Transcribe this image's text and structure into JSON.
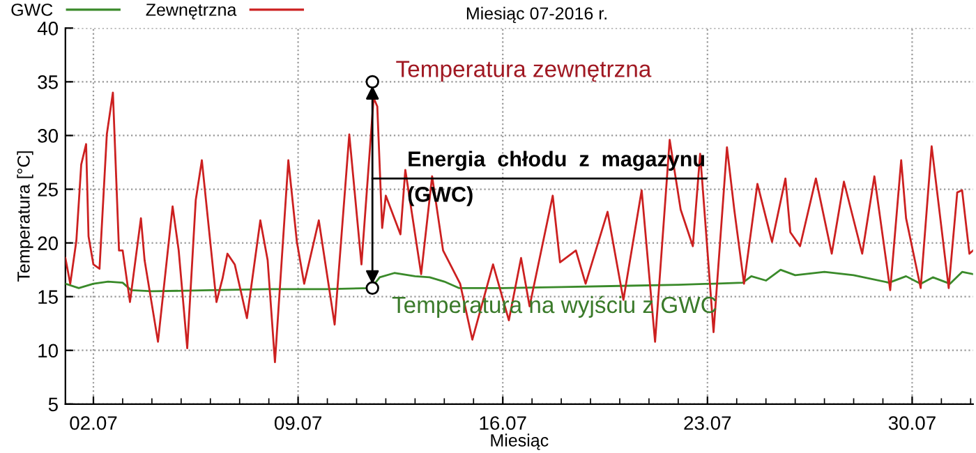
{
  "chart_data": {
    "type": "line",
    "title": "Miesiąc 07-2016 r.",
    "xlabel": "Miesiąc",
    "ylabel": "Temperatura [°C]",
    "xlim": [
      "2016-07-01T01:00",
      "2016-08-01T02:00"
    ],
    "ylim": [
      5,
      40
    ],
    "xticks": [
      {
        "value": "2016-07-02",
        "label": "02.07"
      },
      {
        "value": "2016-07-03",
        "label": null
      },
      {
        "value": "2016-07-04",
        "label": null
      },
      {
        "value": "2016-07-05",
        "label": null
      },
      {
        "value": "2016-07-06",
        "label": null
      },
      {
        "value": "2016-07-07",
        "label": null
      },
      {
        "value": "2016-07-08",
        "label": null
      },
      {
        "value": "2016-07-09",
        "label": "09.07"
      },
      {
        "value": "2016-07-10",
        "label": null
      },
      {
        "value": "2016-07-11",
        "label": null
      },
      {
        "value": "2016-07-12",
        "label": null
      },
      {
        "value": "2016-07-13",
        "label": null
      },
      {
        "value": "2016-07-14",
        "label": null
      },
      {
        "value": "2016-07-15",
        "label": null
      },
      {
        "value": "2016-07-16",
        "label": "16.07"
      },
      {
        "value": "2016-07-17",
        "label": null
      },
      {
        "value": "2016-07-18",
        "label": null
      },
      {
        "value": "2016-07-19",
        "label": null
      },
      {
        "value": "2016-07-20",
        "label": null
      },
      {
        "value": "2016-07-21",
        "label": null
      },
      {
        "value": "2016-07-22",
        "label": null
      },
      {
        "value": "2016-07-23",
        "label": "23.07"
      },
      {
        "value": "2016-07-24",
        "label": null
      },
      {
        "value": "2016-07-25",
        "label": null
      },
      {
        "value": "2016-07-26",
        "label": null
      },
      {
        "value": "2016-07-27",
        "label": null
      },
      {
        "value": "2016-07-28",
        "label": null
      },
      {
        "value": "2016-07-29",
        "label": null
      },
      {
        "value": "2016-07-30",
        "label": "30.07"
      },
      {
        "value": "2016-07-31",
        "label": null
      },
      {
        "value": "2016-08-01",
        "label": null
      }
    ],
    "yticks": [
      5,
      10,
      15,
      20,
      25,
      30,
      35,
      40
    ],
    "grid": true,
    "legend": "top left",
    "marker": "none",
    "line_style": "solid",
    "series": [
      {
        "name": "GWC",
        "color": "#3a8a2a",
        "x": [
          "2016-07-01T01:00",
          "2016-07-01T12:00",
          "2016-07-02T00:00",
          "2016-07-02T12:00",
          "2016-07-03T00:00",
          "2016-07-03T07:00",
          "2016-07-04T00:00",
          "2016-07-06T00:00",
          "2016-07-08T00:00",
          "2016-07-10T00:00",
          "2016-07-11T12:00",
          "2016-07-11T19:00",
          "2016-07-12T07:00",
          "2016-07-13T00:00",
          "2016-07-13T12:00",
          "2016-07-14T00:00",
          "2016-07-14T12:00",
          "2016-07-16T00:00",
          "2016-07-18T00:00",
          "2016-07-20T00:00",
          "2016-07-22T00:00",
          "2016-07-24T05:00",
          "2016-07-24T12:00",
          "2016-07-25T00:00",
          "2016-07-25T12:00",
          "2016-07-26T00:00",
          "2016-07-27T00:00",
          "2016-07-28T00:00",
          "2016-07-29T05:00",
          "2016-07-29T19:00",
          "2016-07-30T07:00",
          "2016-07-30T17:00",
          "2016-07-31T07:00",
          "2016-07-31T17:00",
          "2016-08-01T02:00"
        ],
        "values": [
          16.2,
          15.8,
          16.2,
          16.4,
          16.3,
          15.6,
          15.5,
          15.6,
          15.7,
          15.7,
          15.8,
          16.8,
          17.2,
          16.9,
          16.8,
          16.4,
          15.8,
          15.8,
          15.9,
          16.0,
          16.1,
          16.3,
          16.9,
          16.5,
          17.5,
          17.0,
          17.3,
          17.0,
          16.3,
          16.9,
          16.2,
          16.8,
          16.2,
          17.3,
          17.1
        ]
      },
      {
        "name": "Zewnętrzna",
        "color": "#cc2020",
        "x": [
          "2016-07-01T01:00",
          "2016-07-01T05:00",
          "2016-07-01T10:00",
          "2016-07-01T14:00",
          "2016-07-01T18:00",
          "2016-07-01T20:00",
          "2016-07-02T00:00",
          "2016-07-02T05:00",
          "2016-07-02T11:00",
          "2016-07-02T16:00",
          "2016-07-02T21:00",
          "2016-07-03T00:00",
          "2016-07-03T06:00",
          "2016-07-03T15:00",
          "2016-07-03T18:00",
          "2016-07-04T05:00",
          "2016-07-04T17:00",
          "2016-07-04T22:00",
          "2016-07-05T05:00",
          "2016-07-05T12:00",
          "2016-07-05T17:00",
          "2016-07-06T05:00",
          "2016-07-06T10:00",
          "2016-07-06T14:00",
          "2016-07-06T20:00",
          "2016-07-07T06:00",
          "2016-07-07T17:00",
          "2016-07-07T23:00",
          "2016-07-08T05:00",
          "2016-07-08T16:00",
          "2016-07-08T23:00",
          "2016-07-09T05:00",
          "2016-07-09T17:00",
          "2016-07-10T06:00",
          "2016-07-10T18:00",
          "2016-07-11T04:00",
          "2016-07-11T14:00",
          "2016-07-11T17:00",
          "2016-07-11T21:00",
          "2016-07-12T00:00",
          "2016-07-12T12:00",
          "2016-07-12T16:00",
          "2016-07-13T05:00",
          "2016-07-13T14:00",
          "2016-07-13T23:00",
          "2016-07-14T13:00",
          "2016-07-14T23:00",
          "2016-07-15T16:00",
          "2016-07-16T05:00",
          "2016-07-16T15:00",
          "2016-07-16T22:00",
          "2016-07-17T17:00",
          "2016-07-17T23:00",
          "2016-07-18T12:00",
          "2016-07-18T20:00",
          "2016-07-19T14:00",
          "2016-07-20T03:00",
          "2016-07-20T18:00",
          "2016-07-21T05:00",
          "2016-07-21T17:00",
          "2016-07-22T02:00",
          "2016-07-22T12:00",
          "2016-07-22T18:00",
          "2016-07-23T05:00",
          "2016-07-23T16:00",
          "2016-07-23T22:00",
          "2016-07-24T06:00",
          "2016-07-24T17:00",
          "2016-07-25T05:00",
          "2016-07-25T16:00",
          "2016-07-25T20:00",
          "2016-07-26T04:00",
          "2016-07-26T17:00",
          "2016-07-27T06:00",
          "2016-07-27T16:00",
          "2016-07-28T07:00",
          "2016-07-28T17:00",
          "2016-07-29T06:00",
          "2016-07-29T15:00",
          "2016-07-29T19:00",
          "2016-07-30T07:00",
          "2016-07-30T16:00",
          "2016-07-31T06:00",
          "2016-07-31T13:00",
          "2016-07-31T17:00",
          "2016-07-31T23:00",
          "2016-08-01T02:00"
        ],
        "values": [
          18.6,
          16.2,
          20.2,
          27.3,
          29.2,
          20.6,
          18.0,
          17.6,
          30.1,
          34.0,
          19.3,
          19.3,
          14.5,
          22.3,
          18.4,
          10.8,
          23.4,
          19.3,
          10.2,
          24.0,
          27.7,
          14.5,
          16.7,
          19.0,
          18.0,
          13.0,
          22.1,
          18.4,
          8.9,
          27.7,
          20.1,
          16.2,
          22.1,
          12.4,
          30.1,
          18.0,
          33.5,
          32.7,
          21.4,
          24.4,
          20.8,
          26.8,
          17.1,
          26.2,
          19.3,
          16.2,
          11.0,
          18.0,
          12.8,
          18.6,
          14.1,
          24.4,
          18.2,
          19.3,
          16.2,
          22.9,
          14.7,
          24.9,
          10.8,
          29.6,
          23.1,
          19.7,
          28.3,
          11.7,
          28.9,
          23.1,
          16.2,
          25.5,
          20.1,
          26.0,
          21.0,
          19.7,
          26.0,
          19.0,
          25.7,
          19.0,
          26.2,
          15.6,
          27.7,
          22.3,
          15.8,
          29.0,
          15.8,
          24.7,
          24.9,
          19.0,
          19.3
        ]
      }
    ],
    "annotations": [
      {
        "text": "Temperatura zewnętrzna",
        "x": "2016-07-11T13:00",
        "y": 35
      },
      {
        "text": "Energia  chłodu  z  magazynu\n(GWC)",
        "x": "2016-07-11T13:00",
        "y": 26
      },
      {
        "text": "Temperatura na wyjściu z GWC",
        "x": "2016-07-11T13:00",
        "y": 15.8
      }
    ]
  }
}
